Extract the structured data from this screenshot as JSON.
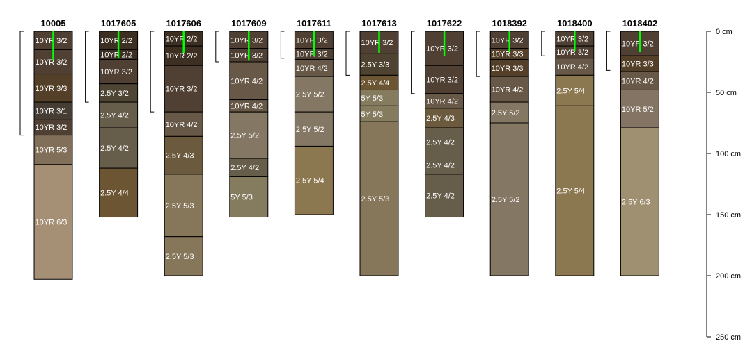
{
  "chart_data": {
    "type": "soil-profile",
    "depth_unit": "cm",
    "depth_range": [
      0,
      250
    ],
    "depth_ticks": [
      {
        "value": 0,
        "label": "0 cm"
      },
      {
        "value": 50,
        "label": "50 cm"
      },
      {
        "value": 100,
        "label": "100 cm"
      },
      {
        "value": 150,
        "label": "150 cm"
      },
      {
        "value": 200,
        "label": "200 cm"
      },
      {
        "value": 250,
        "label": "250 cm"
      }
    ],
    "profiles": [
      {
        "id": "10005",
        "bracket": [
          0,
          85
        ],
        "marker": [
          0,
          24
        ],
        "horizons": [
          {
            "top": 0,
            "bottom": 15,
            "label": "10YR 3/2",
            "color": "#4f4033"
          },
          {
            "top": 15,
            "bottom": 35,
            "label": "10YR 3/2",
            "color": "#4f4033"
          },
          {
            "top": 35,
            "bottom": 58,
            "label": "10YR 3/3",
            "color": "#544028"
          },
          {
            "top": 58,
            "bottom": 72,
            "label": "10YR 3/1",
            "color": "#463d35"
          },
          {
            "top": 72,
            "bottom": 85,
            "label": "10YR 3/2",
            "color": "#4f4033"
          },
          {
            "top": 85,
            "bottom": 109,
            "label": "10YR 5/3",
            "color": "#826f5a"
          },
          {
            "top": 109,
            "bottom": 203,
            "label": "10YR 6/3",
            "color": "#a58f75"
          }
        ]
      },
      {
        "id": "1017605",
        "bracket": [
          0,
          58
        ],
        "marker": [
          0,
          22
        ],
        "horizons": [
          {
            "top": 0,
            "bottom": 15,
            "label": "10YR 2/2",
            "color": "#3d3022"
          },
          {
            "top": 15,
            "bottom": 23,
            "label": "10YR 2/2",
            "color": "#3d3022"
          },
          {
            "top": 23,
            "bottom": 43,
            "label": "10YR 3/2",
            "color": "#4f4033"
          },
          {
            "top": 43,
            "bottom": 58,
            "label": "2.5Y 3/2",
            "color": "#4e4535"
          },
          {
            "top": 58,
            "bottom": 79,
            "label": "2.5Y 4/2",
            "color": "#675d4b"
          },
          {
            "top": 79,
            "bottom": 112,
            "label": "2.5Y 4/2",
            "color": "#675d4b"
          },
          {
            "top": 112,
            "bottom": 152,
            "label": "2.5Y 4/4",
            "color": "#6b5532"
          }
        ]
      },
      {
        "id": "1017606",
        "bracket": [
          0,
          66
        ],
        "marker": [
          0,
          18
        ],
        "horizons": [
          {
            "top": 0,
            "bottom": 12,
            "label": "10YR 2/2",
            "color": "#3d3022"
          },
          {
            "top": 12,
            "bottom": 28,
            "label": "10YR 2/2",
            "color": "#3d3022"
          },
          {
            "top": 28,
            "bottom": 66,
            "label": "10YR 3/2",
            "color": "#4f4033"
          },
          {
            "top": 66,
            "bottom": 86,
            "label": "10YR 4/2",
            "color": "#675847"
          },
          {
            "top": 86,
            "bottom": 117,
            "label": "2.5Y 4/3",
            "color": "#6b5a3e"
          },
          {
            "top": 117,
            "bottom": 168,
            "label": "2.5Y 5/3",
            "color": "#86775b"
          },
          {
            "top": 168,
            "bottom": 200,
            "label": "2.5Y 5/3",
            "color": "#86775b"
          }
        ]
      },
      {
        "id": "1017609",
        "bracket": [
          0,
          25
        ],
        "marker": [
          0,
          24
        ],
        "horizons": [
          {
            "top": 0,
            "bottom": 14,
            "label": "10YR 3/2",
            "color": "#4f4033"
          },
          {
            "top": 14,
            "bottom": 25,
            "label": "10YR 3/2",
            "color": "#4f4033"
          },
          {
            "top": 25,
            "bottom": 56,
            "label": "10YR 4/2",
            "color": "#675847"
          },
          {
            "top": 56,
            "bottom": 66,
            "label": "10YR 4/2",
            "color": "#675847"
          },
          {
            "top": 66,
            "bottom": 104,
            "label": "2.5Y 5/2",
            "color": "#847763"
          },
          {
            "top": 104,
            "bottom": 119,
            "label": "2.5Y 4/2",
            "color": "#675d4b"
          },
          {
            "top": 119,
            "bottom": 152,
            "label": "5Y 5/3",
            "color": "#857c5f"
          }
        ]
      },
      {
        "id": "1017611",
        "bracket": [
          0,
          22
        ],
        "marker": [
          0,
          20
        ],
        "horizons": [
          {
            "top": 0,
            "bottom": 14,
            "label": "10YR 3/2",
            "color": "#4f4033"
          },
          {
            "top": 14,
            "bottom": 23,
            "label": "10YR 3/2",
            "color": "#4f4033"
          },
          {
            "top": 23,
            "bottom": 37,
            "label": "10YR 4/2",
            "color": "#675847"
          },
          {
            "top": 37,
            "bottom": 66,
            "label": "2.5Y 5/2",
            "color": "#847763"
          },
          {
            "top": 66,
            "bottom": 94,
            "label": "2.5Y 5/2",
            "color": "#847763"
          },
          {
            "top": 94,
            "bottom": 150,
            "label": "2.5Y 5/4",
            "color": "#8c7850"
          }
        ]
      },
      {
        "id": "1017613",
        "bracket": [
          0,
          36
        ],
        "marker": [
          0,
          18
        ],
        "horizons": [
          {
            "top": 0,
            "bottom": 18,
            "label": "10YR 3/2",
            "color": "#4f4033"
          },
          {
            "top": 18,
            "bottom": 36,
            "label": "2.5Y 3/3",
            "color": "#4e4330"
          },
          {
            "top": 36,
            "bottom": 48,
            "label": "2.5Y 4/4",
            "color": "#6b5532"
          },
          {
            "top": 48,
            "bottom": 61,
            "label": "5Y 5/3",
            "color": "#857c5f"
          },
          {
            "top": 61,
            "bottom": 74,
            "label": "5Y 5/3",
            "color": "#857c5f"
          },
          {
            "top": 74,
            "bottom": 200,
            "label": "2.5Y 5/3",
            "color": "#86775b"
          }
        ]
      },
      {
        "id": "1017622",
        "bracket": [
          0,
          51
        ],
        "marker": [
          0,
          20
        ],
        "horizons": [
          {
            "top": 0,
            "bottom": 28,
            "label": "10YR 3/2",
            "color": "#4f4033"
          },
          {
            "top": 28,
            "bottom": 51,
            "label": "10YR 3/2",
            "color": "#4f4033"
          },
          {
            "top": 51,
            "bottom": 63,
            "label": "10YR 4/2",
            "color": "#675847"
          },
          {
            "top": 63,
            "bottom": 79,
            "label": "2.5Y 4/3",
            "color": "#6b5a3e"
          },
          {
            "top": 79,
            "bottom": 102,
            "label": "2.5Y 4/2",
            "color": "#675d4b"
          },
          {
            "top": 102,
            "bottom": 117,
            "label": "2.5Y 4/2",
            "color": "#675d4b"
          },
          {
            "top": 117,
            "bottom": 152,
            "label": "2.5Y 4/2",
            "color": "#675d4b"
          }
        ]
      },
      {
        "id": "1018392",
        "bracket": [
          0,
          37
        ],
        "marker": [
          0,
          17
        ],
        "horizons": [
          {
            "top": 0,
            "bottom": 14,
            "label": "10YR 3/2",
            "color": "#4f4033"
          },
          {
            "top": 14,
            "bottom": 23,
            "label": "10YR 3/3",
            "color": "#544028"
          },
          {
            "top": 23,
            "bottom": 37,
            "label": "10YR 3/3",
            "color": "#544028"
          },
          {
            "top": 37,
            "bottom": 58,
            "label": "10YR 4/2",
            "color": "#675847"
          },
          {
            "top": 58,
            "bottom": 75,
            "label": "2.5Y 5/2",
            "color": "#847763"
          },
          {
            "top": 75,
            "bottom": 200,
            "label": "2.5Y 5/2",
            "color": "#847763"
          }
        ]
      },
      {
        "id": "1018400",
        "bracket": [
          0,
          20
        ],
        "marker": [
          0,
          16
        ],
        "horizons": [
          {
            "top": 0,
            "bottom": 12,
            "label": "10YR 3/2",
            "color": "#4f4033"
          },
          {
            "top": 12,
            "bottom": 22,
            "label": "10YR 3/2",
            "color": "#4f4033"
          },
          {
            "top": 22,
            "bottom": 36,
            "label": "10YR 4/2",
            "color": "#675847"
          },
          {
            "top": 36,
            "bottom": 61,
            "label": "2.5Y 5/4",
            "color": "#8c7850"
          },
          {
            "top": 61,
            "bottom": 200,
            "label": "2.5Y 5/4",
            "color": "#8c7850"
          }
        ]
      },
      {
        "id": "1018402",
        "bracket": [
          0,
          32
        ],
        "marker": [
          0,
          17
        ],
        "horizons": [
          {
            "top": 0,
            "bottom": 20,
            "label": "10YR 3/2",
            "color": "#4f4033"
          },
          {
            "top": 20,
            "bottom": 33,
            "label": "10YR 3/3",
            "color": "#544028"
          },
          {
            "top": 33,
            "bottom": 48,
            "label": "10YR 4/2",
            "color": "#675847"
          },
          {
            "top": 48,
            "bottom": 79,
            "label": "10YR 5/2",
            "color": "#837463"
          },
          {
            "top": 79,
            "bottom": 200,
            "label": "2.5Y 6/3",
            "color": "#9e9070"
          }
        ]
      }
    ],
    "marker_color": "#00ff00",
    "border_color": "#000000"
  }
}
